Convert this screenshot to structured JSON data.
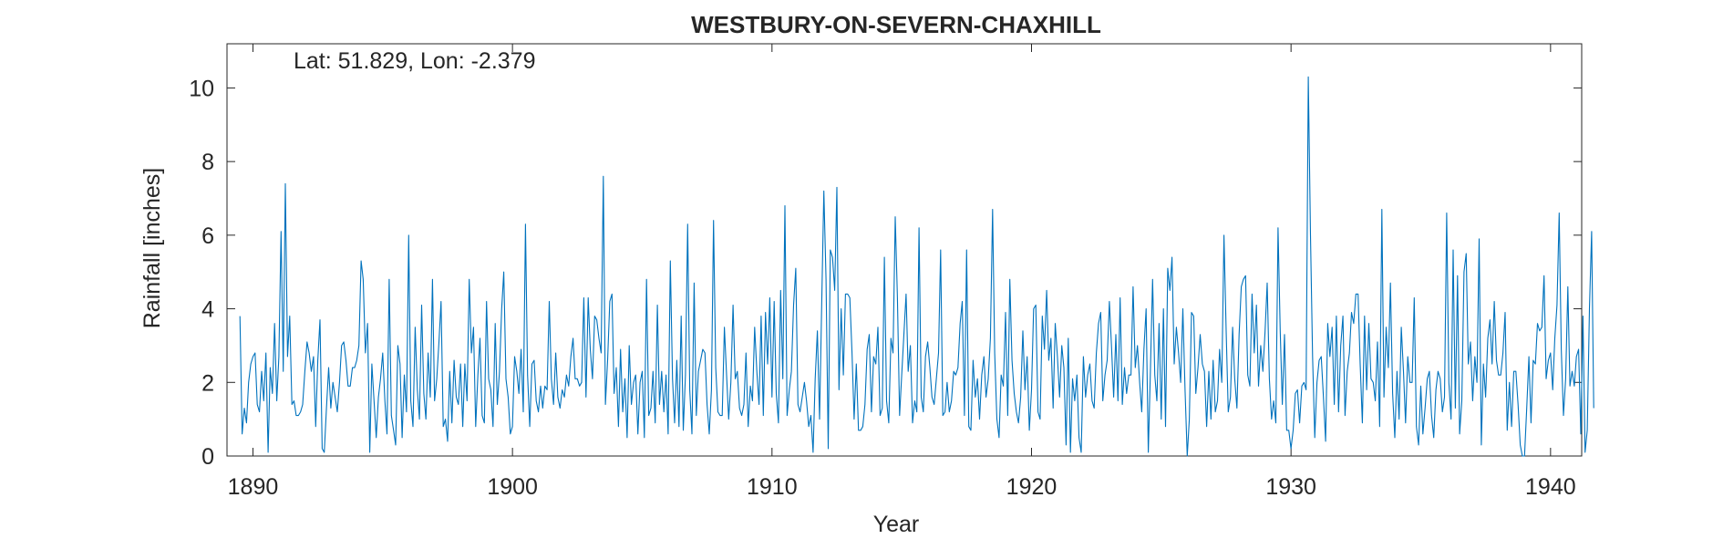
{
  "chart_data": {
    "type": "line",
    "title": "WESTBURY-ON-SEVERN-CHAXHILL",
    "annotation": "Lat: 51.829, Lon: -2.379",
    "xlabel": "Year",
    "ylabel": "Rainfall [inches]",
    "xlim": [
      1889,
      1941.2
    ],
    "ylim": [
      0,
      11.2
    ],
    "xticks": [
      1890,
      1900,
      1910,
      1920,
      1930,
      1940
    ],
    "yticks": [
      0,
      2,
      4,
      6,
      8,
      10
    ],
    "grid": false,
    "line_color": "#0072BD",
    "series": [
      {
        "x_start": 1889.5,
        "x_step": 0.08333,
        "values": [
          3.8,
          0.6,
          1.3,
          0.9,
          2.0,
          2.5,
          2.7,
          2.8,
          1.4,
          1.2,
          2.3,
          1.5,
          2.8,
          0.1,
          2.4,
          1.7,
          3.6,
          1.5,
          2.7,
          6.1,
          2.3,
          7.4,
          2.7,
          3.8,
          1.4,
          1.5,
          1.1,
          1.1,
          1.2,
          1.4,
          2.3,
          3.1,
          2.8,
          2.3,
          2.7,
          0.8,
          2.6,
          3.7,
          0.2,
          0.1,
          1.3,
          2.4,
          1.3,
          2.0,
          1.6,
          1.2,
          2.0,
          3.0,
          3.1,
          2.6,
          1.9,
          1.9,
          2.4,
          2.4,
          2.6,
          3.0,
          5.3,
          4.8,
          2.8,
          3.6,
          0.1,
          2.5,
          1.5,
          0.5,
          1.6,
          2.1,
          2.8,
          1.5,
          0.6,
          4.8,
          1.1,
          0.7,
          0.3,
          3.0,
          2.5,
          0.5,
          2.2,
          1.2,
          6.0,
          1.5,
          0.8,
          3.5,
          1.8,
          1.0,
          4.1,
          1.7,
          1.0,
          2.8,
          1.6,
          4.8,
          1.5,
          2.1,
          3.1,
          4.2,
          0.8,
          1.0,
          0.4,
          2.3,
          0.9,
          2.6,
          1.6,
          1.4,
          2.5,
          0.8,
          2.5,
          1.5,
          4.8,
          2.8,
          3.5,
          0.8,
          2.2,
          3.2,
          1.1,
          0.9,
          4.2,
          2.1,
          1.8,
          0.8,
          3.6,
          1.4,
          2.3,
          4.0,
          5.0,
          2.1,
          1.6,
          0.6,
          0.8,
          2.7,
          2.3,
          1.7,
          2.9,
          1.2,
          6.3,
          2.2,
          0.8,
          2.5,
          2.6,
          1.5,
          1.2,
          1.9,
          1.3,
          1.9,
          1.8,
          4.2,
          2.1,
          1.4,
          2.8,
          1.6,
          1.3,
          1.8,
          1.6,
          2.2,
          1.9,
          2.7,
          3.2,
          2.1,
          2.1,
          1.9,
          2.0,
          4.3,
          1.6,
          4.3,
          2.9,
          2.1,
          3.8,
          3.7,
          3.2,
          2.8,
          7.6,
          1.4,
          2.6,
          4.2,
          4.4,
          1.7,
          2.4,
          0.8,
          2.9,
          1.2,
          2.1,
          0.5,
          3.0,
          1.4,
          2.0,
          2.2,
          0.6,
          2.0,
          2.3,
          0.5,
          4.8,
          1.1,
          1.3,
          2.3,
          0.9,
          4.1,
          1.4,
          2.3,
          1.2,
          2.2,
          0.6,
          5.3,
          2.1,
          0.9,
          2.6,
          0.8,
          3.8,
          0.7,
          2.2,
          6.3,
          1.8,
          0.6,
          4.7,
          1.1,
          2.3,
          2.6,
          2.9,
          2.8,
          1.4,
          0.6,
          1.8,
          6.4,
          2.4,
          1.2,
          1.1,
          1.1,
          3.5,
          2.2,
          1.0,
          2.0,
          4.1,
          2.1,
          2.3,
          1.3,
          1.1,
          1.4,
          2.8,
          0.8,
          1.9,
          1.5,
          3.5,
          2.3,
          1.4,
          3.8,
          1.1,
          3.9,
          2.5,
          4.3,
          1.6,
          4.2,
          1.7,
          0.9,
          4.5,
          2.1,
          6.8,
          1.1,
          1.8,
          2.3,
          4.1,
          5.1,
          1.4,
          1.2,
          1.6,
          2.0,
          1.5,
          0.8,
          1.1,
          0.1,
          2.1,
          3.4,
          1.0,
          4.2,
          7.2,
          4.8,
          0.2,
          5.6,
          5.4,
          4.5,
          7.3,
          1.8,
          4.0,
          2.2,
          4.4,
          4.4,
          4.3,
          2.8,
          1.0,
          2.5,
          0.7,
          0.7,
          0.8,
          1.4,
          2.9,
          3.3,
          1.2,
          2.7,
          2.5,
          3.5,
          1.1,
          1.3,
          5.4,
          1.5,
          0.9,
          3.2,
          2.8,
          6.5,
          4.3,
          1.1,
          2.2,
          3.3,
          4.4,
          2.3,
          3.0,
          0.9,
          1.5,
          1.2,
          6.2,
          1.6,
          1.2,
          2.7,
          3.1,
          2.4,
          1.6,
          1.4,
          2.1,
          2.8,
          5.6,
          1.1,
          1.2,
          2.0,
          1.2,
          1.5,
          2.3,
          2.2,
          2.4,
          3.6,
          4.2,
          1.1,
          5.6,
          0.8,
          0.7,
          2.6,
          1.6,
          2.1,
          1.0,
          2.2,
          2.7,
          1.6,
          2.1,
          3.2,
          6.7,
          2.8,
          1.0,
          0.5,
          2.2,
          1.9,
          3.9,
          1.1,
          4.8,
          2.6,
          1.7,
          1.2,
          0.9,
          1.6,
          3.4,
          1.8,
          2.7,
          0.7,
          1.8,
          4.0,
          4.1,
          1.2,
          1.0,
          3.8,
          2.9,
          4.5,
          2.6,
          3.2,
          1.3,
          3.6,
          2.7,
          1.6,
          3.0,
          2.4,
          0.3,
          3.2,
          0.1,
          2.1,
          1.5,
          2.2,
          0.5,
          0.1,
          2.7,
          1.6,
          2.2,
          2.5,
          1.5,
          1.3,
          2.8,
          3.6,
          3.9,
          1.5,
          2.2,
          2.6,
          4.2,
          3.0,
          1.6,
          3.3,
          1.5,
          4.3,
          1.4,
          2.4,
          1.7,
          2.2,
          2.2,
          4.6,
          2.4,
          3.0,
          2.0,
          1.2,
          2.9,
          4.0,
          0.1,
          2.3,
          4.8,
          2.2,
          1.5,
          3.6,
          1.0,
          4.0,
          0.8,
          5.1,
          4.5,
          5.4,
          2.5,
          3.5,
          2.8,
          2.0,
          4.0,
          1.8,
          0.0,
          1.0,
          3.9,
          3.8,
          1.7,
          2.4,
          3.3,
          2.5,
          2.3,
          0.8,
          2.3,
          1.0,
          2.6,
          1.2,
          1.5,
          2.9,
          2.0,
          6.0,
          3.4,
          1.2,
          1.6,
          3.5,
          2.1,
          1.3,
          3.3,
          4.6,
          4.8,
          4.9,
          2.2,
          1.9,
          4.4,
          2.8,
          4.1,
          1.9,
          3.0,
          2.3,
          3.4,
          4.7,
          2.1,
          1.0,
          1.5,
          0.9,
          6.2,
          3.4,
          1.4,
          3.3,
          0.7,
          0.7,
          0.2,
          0.7,
          1.7,
          1.8,
          0.9,
          1.9,
          2.0,
          1.8,
          10.3,
          6.0,
          2.7,
          0.5,
          2.0,
          2.6,
          2.7,
          1.6,
          0.4,
          3.6,
          2.7,
          3.5,
          1.4,
          3.8,
          1.2,
          3.0,
          3.8,
          1.1,
          2.3,
          2.8,
          3.9,
          3.6,
          4.4,
          4.4,
          2.5,
          0.9,
          3.8,
          1.8,
          3.6,
          2.1,
          2.0,
          1.5,
          3.1,
          0.8,
          6.7,
          1.6,
          3.5,
          2.4,
          4.7,
          1.7,
          0.5,
          2.3,
          1.0,
          3.5,
          2.3,
          0.9,
          2.7,
          2.0,
          2.0,
          4.3,
          0.8,
          0.3,
          1.9,
          0.6,
          1.3,
          2.1,
          2.3,
          1.1,
          0.5,
          1.8,
          2.3,
          2.1,
          1.2,
          1.6,
          6.6,
          2.0,
          1.0,
          5.6,
          1.3,
          4.9,
          0.6,
          1.5,
          5.0,
          5.5,
          2.5,
          3.1,
          1.5,
          2.7,
          2.0,
          5.9,
          0.3,
          2.5,
          1.6,
          3.2,
          3.7,
          2.5,
          4.2,
          2.6,
          2.2,
          2.2,
          2.8,
          3.9,
          0.7,
          2.0,
          0.8,
          2.3,
          2.3,
          1.4,
          0.3,
          0.0,
          0.0,
          1.3,
          2.7,
          0.9,
          2.6,
          2.5,
          3.6,
          3.4,
          3.5,
          4.9,
          2.1,
          2.6,
          2.8,
          1.8,
          3.2,
          4.1,
          6.6,
          2.9,
          1.1,
          2.1,
          4.6,
          1.9,
          2.3,
          1.9,
          2.7,
          2.9,
          0.6,
          3.8,
          0.1,
          0.7,
          4.0,
          6.1,
          1.3
        ]
      }
    ]
  }
}
